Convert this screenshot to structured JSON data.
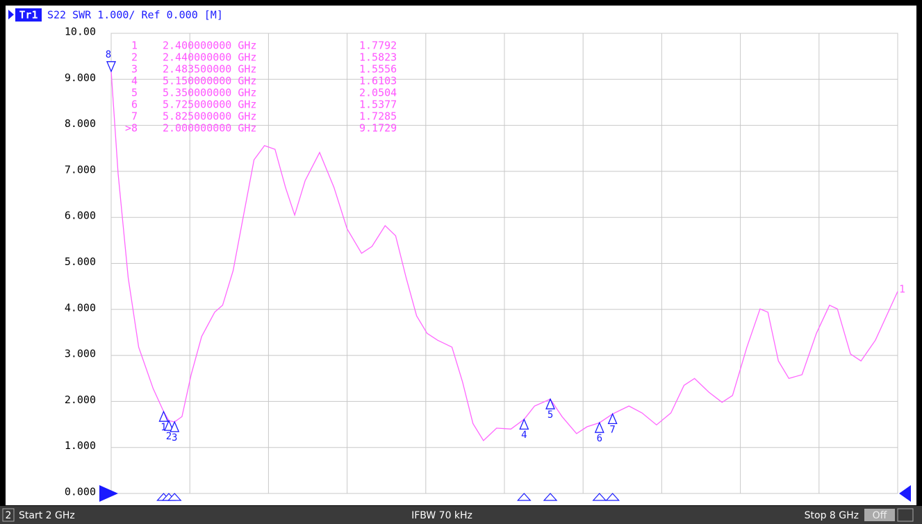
{
  "chart_data": {
    "type": "line",
    "trace_name": "Tr1",
    "title": "S22 SWR 1.000/ Ref 0.000 [M]",
    "trace_end_label": "1",
    "xlim": [
      2,
      8
    ],
    "xticks": [
      2,
      2.6,
      3.2,
      3.8,
      4.4,
      5,
      5.6,
      6.2,
      6.8,
      7.4,
      8
    ],
    "ylim": [
      0,
      10
    ],
    "yticks": [
      {
        "value": 0,
        "label": "0.000"
      },
      {
        "value": 1,
        "label": "1.000"
      },
      {
        "value": 2,
        "label": "2.000"
      },
      {
        "value": 3,
        "label": "3.000"
      },
      {
        "value": 4,
        "label": "4.000"
      },
      {
        "value": 5,
        "label": "5.000"
      },
      {
        "value": 6,
        "label": "6.000"
      },
      {
        "value": 7,
        "label": "7.000"
      },
      {
        "value": 8,
        "label": "8.000"
      },
      {
        "value": 9,
        "label": "9.000"
      },
      {
        "value": 10,
        "label": "10.00"
      }
    ],
    "grid": true,
    "x": [
      2.0,
      2.053,
      2.13,
      2.21,
      2.32,
      2.4,
      2.44,
      2.4835,
      2.54,
      2.61,
      2.69,
      2.79,
      2.85,
      2.93,
      3.01,
      3.09,
      3.17,
      3.25,
      3.33,
      3.4,
      3.48,
      3.59,
      3.7,
      3.8,
      3.91,
      3.99,
      4.09,
      4.17,
      4.25,
      4.33,
      4.41,
      4.49,
      4.6,
      4.68,
      4.76,
      4.84,
      4.94,
      5.05,
      5.15,
      5.23,
      5.35,
      5.44,
      5.55,
      5.63,
      5.725,
      5.825,
      5.95,
      6.05,
      6.16,
      6.27,
      6.37,
      6.45,
      6.56,
      6.66,
      6.74,
      6.85,
      6.95,
      7.01,
      7.09,
      7.17,
      7.27,
      7.38,
      7.48,
      7.54,
      7.64,
      7.72,
      7.83,
      8.0
    ],
    "series": [
      {
        "name": "Tr1",
        "color": "#ff66ff",
        "values": [
          9.1729,
          6.95,
          4.69,
          3.18,
          2.28,
          1.7792,
          1.5823,
          1.5556,
          1.67,
          2.58,
          3.41,
          3.94,
          4.09,
          4.84,
          6.05,
          7.25,
          7.56,
          7.48,
          6.65,
          6.05,
          6.8,
          7.41,
          6.65,
          5.75,
          5.22,
          5.37,
          5.82,
          5.6,
          4.69,
          3.86,
          3.48,
          3.33,
          3.18,
          2.43,
          1.52,
          1.15,
          1.42,
          1.4,
          1.6103,
          1.9,
          2.0504,
          1.67,
          1.3,
          1.45,
          1.5377,
          1.7285,
          1.9,
          1.75,
          1.49,
          1.75,
          2.35,
          2.5,
          2.2,
          1.98,
          2.13,
          3.18,
          4.01,
          3.94,
          2.88,
          2.5,
          2.58,
          3.48,
          4.09,
          4.01,
          3.03,
          2.88,
          3.33,
          4.39
        ]
      }
    ],
    "markers": [
      {
        "id": "1",
        "table_id": "1",
        "frequency": "2.400000000 GHz",
        "x": 2.4,
        "value": 1.7792
      },
      {
        "id": "2",
        "table_id": "2",
        "frequency": "2.440000000 GHz",
        "x": 2.44,
        "value": 1.5823
      },
      {
        "id": "3",
        "table_id": "3",
        "frequency": "2.483500000 GHz",
        "x": 2.4835,
        "value": 1.5556
      },
      {
        "id": "4",
        "table_id": "4",
        "frequency": "5.150000000 GHz",
        "x": 5.15,
        "value": 1.6103
      },
      {
        "id": "5",
        "table_id": "5",
        "frequency": "5.350000000 GHz",
        "x": 5.35,
        "value": 2.0504
      },
      {
        "id": "6",
        "table_id": "6",
        "frequency": "5.725000000 GHz",
        "x": 5.725,
        "value": 1.5377
      },
      {
        "id": "7",
        "table_id": "7",
        "frequency": "5.825000000 GHz",
        "x": 5.825,
        "value": 1.7285
      },
      {
        "id": "8",
        "table_id": ">8",
        "frequency": "2.000000000 GHz",
        "x": 2.0,
        "value": 9.1729,
        "active": true
      }
    ]
  },
  "status_bar": {
    "channel": "2",
    "start": "Start 2 GHz",
    "ifbw": "IFBW 70 kHz",
    "stop": "Stop 8 GHz",
    "correction": "Off"
  }
}
